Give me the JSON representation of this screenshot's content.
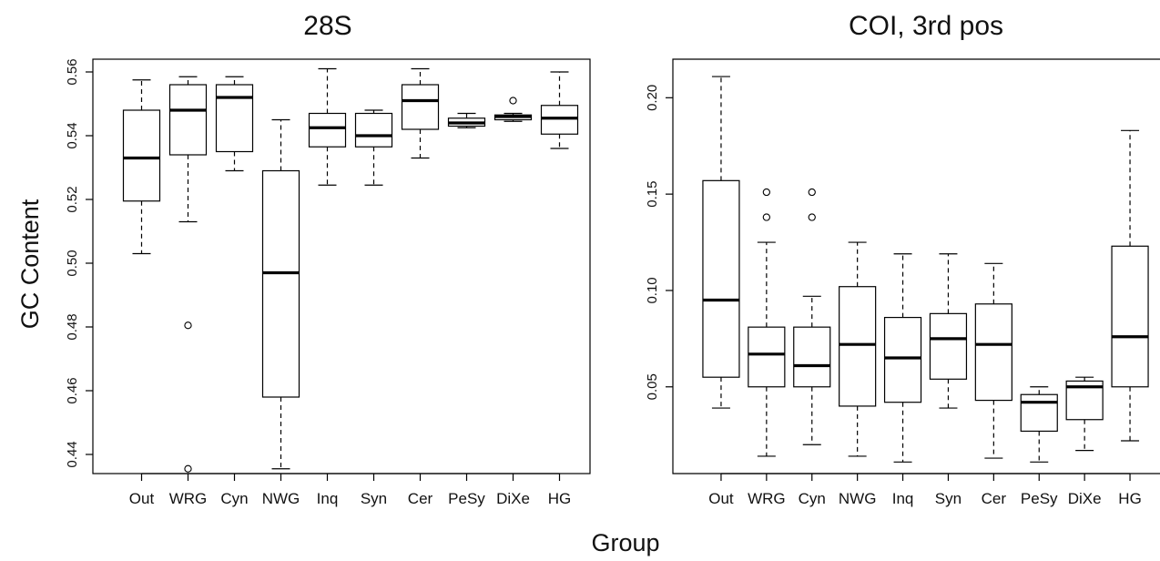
{
  "figure": {
    "xlabel": "Group",
    "ylabel": "GC Content"
  },
  "chart_data": [
    {
      "type": "boxplot",
      "title": "28S",
      "categories": [
        "Out",
        "WRG",
        "Cyn",
        "NWG",
        "Inq",
        "Syn",
        "Cer",
        "PeSy",
        "DiXe",
        "HG"
      ],
      "ylim": [
        0.434,
        0.564
      ],
      "yticks": [
        0.44,
        0.46,
        0.48,
        0.5,
        0.52,
        0.54,
        0.56
      ],
      "ytick_labels": [
        "0.44",
        "0.46",
        "0.48",
        "0.50",
        "0.52",
        "0.54",
        "0.56"
      ],
      "grid": false,
      "boxes": [
        {
          "category": "Out",
          "whisker_low": 0.503,
          "q1": 0.5195,
          "median": 0.533,
          "q3": 0.548,
          "whisker_high": 0.5575,
          "outliers": []
        },
        {
          "category": "WRG",
          "whisker_low": 0.513,
          "q1": 0.534,
          "median": 0.548,
          "q3": 0.556,
          "whisker_high": 0.5585,
          "outliers": [
            0.4805,
            0.4355
          ]
        },
        {
          "category": "Cyn",
          "whisker_low": 0.529,
          "q1": 0.535,
          "median": 0.552,
          "q3": 0.556,
          "whisker_high": 0.5585,
          "outliers": []
        },
        {
          "category": "NWG",
          "whisker_low": 0.4355,
          "q1": 0.458,
          "median": 0.497,
          "q3": 0.529,
          "whisker_high": 0.545,
          "outliers": []
        },
        {
          "category": "Inq",
          "whisker_low": 0.5245,
          "q1": 0.5365,
          "median": 0.5425,
          "q3": 0.547,
          "whisker_high": 0.561,
          "outliers": []
        },
        {
          "category": "Syn",
          "whisker_low": 0.5245,
          "q1": 0.5365,
          "median": 0.54,
          "q3": 0.547,
          "whisker_high": 0.548,
          "outliers": []
        },
        {
          "category": "Cer",
          "whisker_low": 0.533,
          "q1": 0.542,
          "median": 0.551,
          "q3": 0.556,
          "whisker_high": 0.561,
          "outliers": []
        },
        {
          "category": "PeSy",
          "whisker_low": 0.5425,
          "q1": 0.543,
          "median": 0.544,
          "q3": 0.5455,
          "whisker_high": 0.547,
          "outliers": []
        },
        {
          "category": "DiXe",
          "whisker_low": 0.5445,
          "q1": 0.545,
          "median": 0.546,
          "q3": 0.5465,
          "whisker_high": 0.547,
          "outliers": [
            0.551
          ]
        },
        {
          "category": "HG",
          "whisker_low": 0.536,
          "q1": 0.5405,
          "median": 0.5455,
          "q3": 0.5495,
          "whisker_high": 0.56,
          "outliers": []
        }
      ]
    },
    {
      "type": "boxplot",
      "title": "COI, 3rd pos",
      "categories": [
        "Out",
        "WRG",
        "Cyn",
        "NWG",
        "Inq",
        "Syn",
        "Cer",
        "PeSy",
        "DiXe",
        "HG"
      ],
      "ylim": [
        0.005,
        0.22
      ],
      "yticks": [
        0.05,
        0.1,
        0.15,
        0.2
      ],
      "ytick_labels": [
        "0.05",
        "0.10",
        "0.15",
        "0.20"
      ],
      "grid": false,
      "boxes": [
        {
          "category": "Out",
          "whisker_low": 0.039,
          "q1": 0.055,
          "median": 0.095,
          "q3": 0.157,
          "whisker_high": 0.211,
          "outliers": []
        },
        {
          "category": "WRG",
          "whisker_low": 0.014,
          "q1": 0.05,
          "median": 0.067,
          "q3": 0.081,
          "whisker_high": 0.125,
          "outliers": [
            0.138,
            0.151
          ]
        },
        {
          "category": "Cyn",
          "whisker_low": 0.02,
          "q1": 0.05,
          "median": 0.061,
          "q3": 0.081,
          "whisker_high": 0.097,
          "outliers": [
            0.138,
            0.151
          ]
        },
        {
          "category": "NWG",
          "whisker_low": 0.014,
          "q1": 0.04,
          "median": 0.072,
          "q3": 0.102,
          "whisker_high": 0.125,
          "outliers": []
        },
        {
          "category": "Inq",
          "whisker_low": 0.011,
          "q1": 0.042,
          "median": 0.065,
          "q3": 0.086,
          "whisker_high": 0.119,
          "outliers": []
        },
        {
          "category": "Syn",
          "whisker_low": 0.039,
          "q1": 0.054,
          "median": 0.075,
          "q3": 0.088,
          "whisker_high": 0.119,
          "outliers": []
        },
        {
          "category": "Cer",
          "whisker_low": 0.013,
          "q1": 0.043,
          "median": 0.072,
          "q3": 0.093,
          "whisker_high": 0.114,
          "outliers": []
        },
        {
          "category": "PeSy",
          "whisker_low": 0.011,
          "q1": 0.027,
          "median": 0.042,
          "q3": 0.046,
          "whisker_high": 0.05,
          "outliers": []
        },
        {
          "category": "DiXe",
          "whisker_low": 0.017,
          "q1": 0.033,
          "median": 0.05,
          "q3": 0.053,
          "whisker_high": 0.055,
          "outliers": []
        },
        {
          "category": "HG",
          "whisker_low": 0.022,
          "q1": 0.05,
          "median": 0.076,
          "q3": 0.123,
          "whisker_high": 0.183,
          "outliers": []
        }
      ]
    }
  ]
}
